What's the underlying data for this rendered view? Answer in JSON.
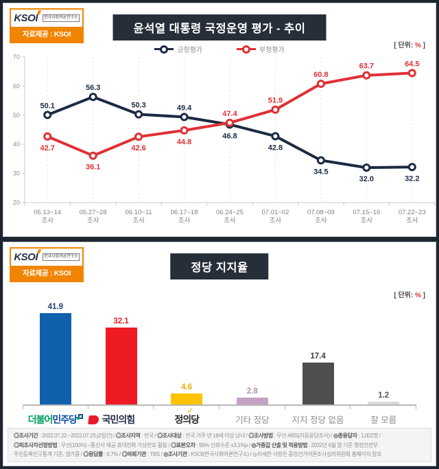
{
  "logo": {
    "brand": "KSOI",
    "org": "한국사회여론연구소",
    "provider": "자료제공 : KSOI",
    "accent_orange": "#f28500"
  },
  "unit": {
    "pre": "[ 단위: ",
    "sym": "%",
    "post": " ]"
  },
  "colors": {
    "title_bar": "#262e3a",
    "frame": "#1d2531"
  },
  "chart_data": [
    {
      "type": "line",
      "title": "윤석열 대통령 국정운영 평가 - 추이",
      "unit_label": "[ 단위: % ]",
      "categories": [
        "05.13~14",
        "05.27~28",
        "06.10~11",
        "06.17~18",
        "06.24~25",
        "07.01~02",
        "07.08~09",
        "07.15~16",
        "07.22~23"
      ],
      "category_suffix": "조사",
      "yticks": [
        20,
        30,
        40,
        50,
        60,
        70
      ],
      "ylim": [
        20,
        70
      ],
      "grid": "vertical-dashed",
      "legend_position": "top-center",
      "series": [
        {
          "name": "긍정평가",
          "color": "#1b2a44",
          "values": [
            50.1,
            56.3,
            50.3,
            49.4,
            46.8,
            42.8,
            34.5,
            32.0,
            32.2
          ],
          "label_side": [
            "above",
            "above",
            "above",
            "above",
            "below",
            "below",
            "below",
            "below",
            "below"
          ]
        },
        {
          "name": "부정평가",
          "color": "#e02f34",
          "values": [
            42.7,
            36.1,
            42.6,
            44.8,
            47.4,
            51.9,
            60.8,
            63.7,
            64.5
          ],
          "label_side": [
            "below",
            "below",
            "below",
            "below",
            "above",
            "above",
            "above",
            "above",
            "above"
          ]
        }
      ]
    },
    {
      "type": "bar",
      "title": "정당 지지율",
      "unit_label": "[ 단위: % ]",
      "categories": [
        "더불어민주당",
        "국민의힘",
        "정의당",
        "기타 정당",
        "지지 정당 없음",
        "잘 모름"
      ],
      "values": [
        41.9,
        32.1,
        4.6,
        2.8,
        17.4,
        1.2
      ],
      "ylim": [
        0,
        43
      ],
      "bar_colors": [
        "#1160ae",
        "#ee1b24",
        "#fdc300",
        "#c4a2c6",
        "#4f4f4f",
        "#d9d9d9"
      ],
      "value_label_colors": [
        "#1f3c78",
        "#e02128",
        "#f0ad00",
        "#b18fb3",
        "#3f3f3f",
        "#595959"
      ],
      "label_styles": [
        "minjoo",
        "ppp",
        "justice",
        "plain",
        "plain",
        "plain"
      ],
      "minjoo_parts": [
        {
          "t": "더불어",
          "c": "#00a05a"
        },
        {
          "t": "민주당",
          "c": "#0b4da2"
        }
      ],
      "ppp_text_color": "#1f2a44",
      "ppp_logo_color": "#e8192c",
      "justice_text_color": "#262626",
      "justice_check_color": "#fdc300"
    }
  ],
  "footer": {
    "lines": [
      [
        {
          "t": "◎조사기간",
          "b": true
        },
        {
          "t": " : 2022.07.22.~2022.07.23.(2일간) / ",
          "b": false
        },
        {
          "t": "◎조사지역",
          "b": true
        },
        {
          "t": " : 전국 / ",
          "b": false
        },
        {
          "t": "◎조사대상",
          "b": true
        },
        {
          "t": " : 전국 거주 만 18세 이상 남녀 / ",
          "b": false
        },
        {
          "t": "◎조사방법",
          "b": true
        },
        {
          "t": " : 무선 ARS(자동응답조사) / ",
          "b": false
        },
        {
          "t": "◎총응답자",
          "b": true
        },
        {
          "t": " : 1,002명 /",
          "b": false
        }
      ],
      [
        {
          "t": "◎피조사자선정방법",
          "b": true
        },
        {
          "t": " : 무선(100%) –통신사 제공 휴대전화 가상번호 활용 / ",
          "b": false
        },
        {
          "t": "◎표본오차",
          "b": true
        },
        {
          "t": " : 95% 신뢰수준 ±3.1%p / ",
          "b": false
        },
        {
          "t": "◎가중값 산출 및 적용방법",
          "b": true
        },
        {
          "t": " : 2022년 6월 말 기준 행정안전부",
          "b": false
        }
      ],
      [
        {
          "t": "주민등록인구통계 기준, 셀가중 / ",
          "b": false
        },
        {
          "t": "◎응답률",
          "b": true
        },
        {
          "t": " : 6.7% / ",
          "b": false
        },
        {
          "t": "◎의뢰기관",
          "b": true
        },
        {
          "t": " : TBS / ",
          "b": false
        },
        {
          "t": "◎조사기관",
          "b": true
        },
        {
          "t": " : KSOI(한국사회여론연구소) / ",
          "b": false
        },
        {
          "t": "◎자세한 사항은 중앙선거여론조사심의위원회 홈페이지 참조",
          "b": false
        }
      ]
    ]
  }
}
